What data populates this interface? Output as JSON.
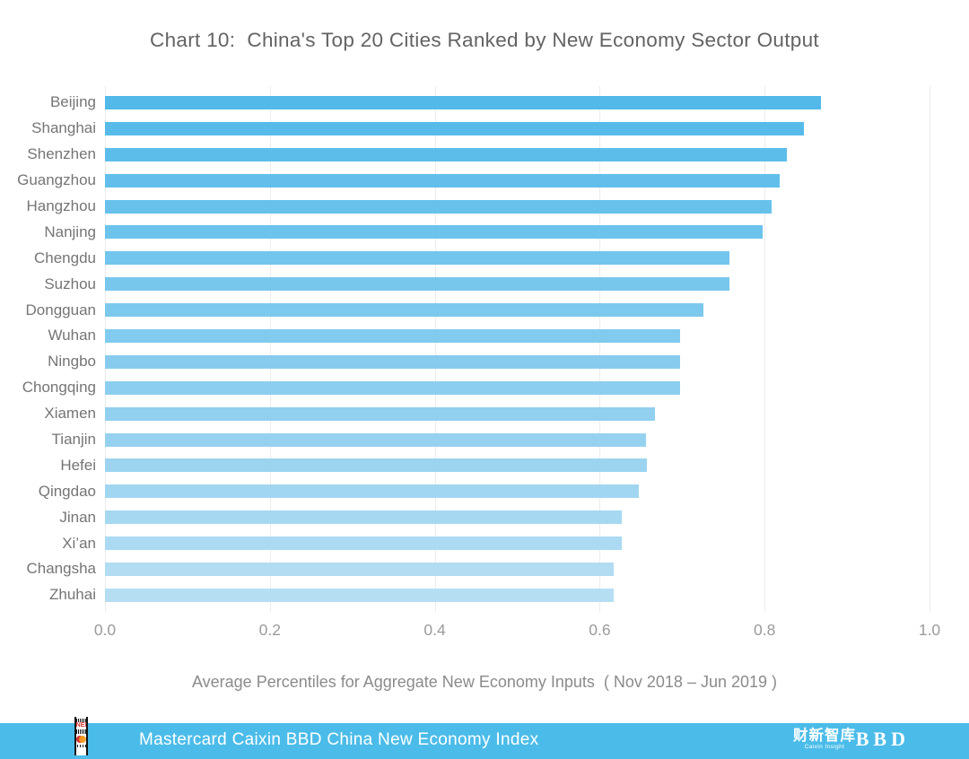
{
  "title": "Chart 10:  China's Top 20 Cities Ranked by New Economy Sector Output",
  "chart_data": {
    "type": "bar",
    "orientation": "horizontal",
    "title": "Chart 10:  China's Top 20 Cities Ranked by New Economy Sector Output",
    "categories": [
      "Beijing",
      "Shanghai",
      "Shenzhen",
      "Guangzhou",
      "Hangzhou",
      "Nanjing",
      "Chengdu",
      "Suzhou",
      "Dongguan",
      "Wuhan",
      "Ningbo",
      "Chongqing",
      "Xiamen",
      "Tianjin",
      "Hefei",
      "Qingdao",
      "Jinan",
      "Xi’an",
      "Changsha",
      "Zhuhai"
    ],
    "values": [
      0.868,
      0.848,
      0.827,
      0.818,
      0.808,
      0.798,
      0.757,
      0.757,
      0.726,
      0.698,
      0.698,
      0.698,
      0.667,
      0.656,
      0.657,
      0.647,
      0.627,
      0.627,
      0.617,
      0.617
    ],
    "xlabel": "Average Percentiles for Aggregate New Economy Inputs  ( Nov 2018 – Jun 2019 )",
    "ylabel": "",
    "xlim": [
      0.0,
      1.0
    ],
    "xticks": [
      "0.0",
      "0.2",
      "0.4",
      "0.6",
      "0.8",
      "1.0"
    ],
    "grid": "vertical-only",
    "legend": "none",
    "bar_color_top": "#52B9E9",
    "bar_color_bottom": "#B6DEF3",
    "gridline_color": "#ececec"
  },
  "footer": {
    "title": "Mastercard Caixin BBD China New Economy Index",
    "bar_color": "#4BBCE9",
    "nei_logo_text": "NEI",
    "caixin_cn": "财新智库",
    "caixin_en": "Caixin Insight",
    "bbd": "BBD"
  }
}
